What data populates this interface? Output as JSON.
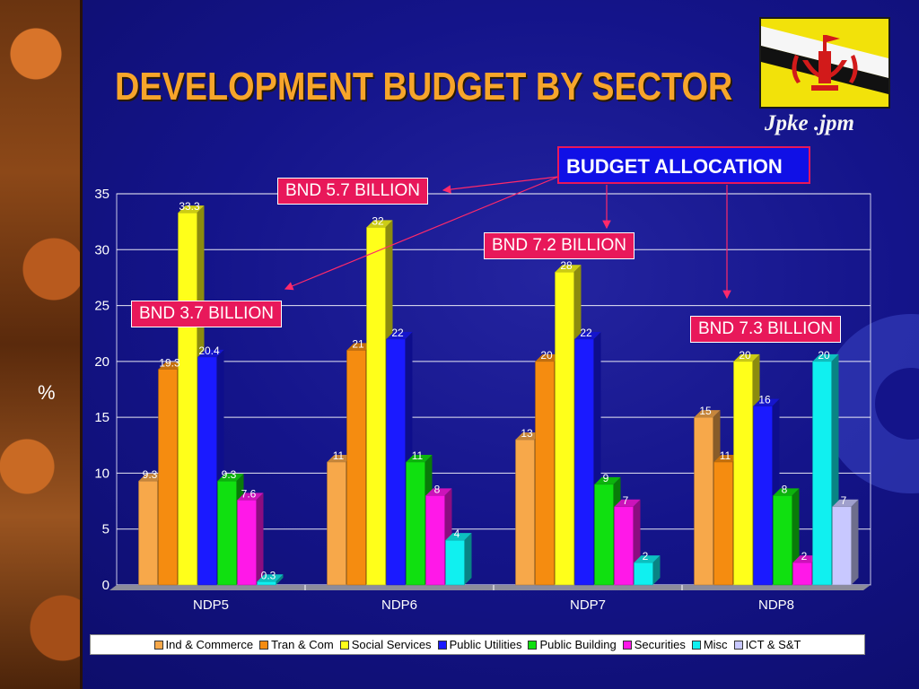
{
  "slide": {
    "title": "DEVELOPMENT BUDGET BY SECTOR",
    "author": "Jpke .jpm"
  },
  "annotations": {
    "budget_allocation": "BUDGET ALLOCATION",
    "ndp5": "BND 3.7 BILLION",
    "ndp6": "BND 5.7 BILLION",
    "ndp7": "BND 7.2 BILLION",
    "ndp8": "BND 7.3 BILLION"
  },
  "chart_data": {
    "type": "bar",
    "title": "",
    "xlabel": "",
    "ylabel": "%",
    "ylim": [
      0,
      35
    ],
    "yticks": [
      0,
      5,
      10,
      15,
      20,
      25,
      30,
      35
    ],
    "grid": true,
    "legend_position": "bottom",
    "categories": [
      "NDP5",
      "NDP6",
      "NDP7",
      "NDP8"
    ],
    "series": [
      {
        "name": "Ind & Commerce",
        "color": "#f7a84a",
        "values": [
          9.3,
          11,
          13,
          15
        ]
      },
      {
        "name": "Tran & Com",
        "color": "#f58c10",
        "values": [
          19.3,
          21,
          20,
          11
        ]
      },
      {
        "name": "Social Services",
        "color": "#ffff1a",
        "values": [
          33.3,
          32,
          28,
          20
        ]
      },
      {
        "name": "Public Utilities",
        "color": "#1a1aff",
        "values": [
          20.4,
          22,
          22,
          16
        ]
      },
      {
        "name": "Public Building",
        "color": "#10e010",
        "values": [
          9.3,
          11,
          9,
          8
        ]
      },
      {
        "name": "Securities",
        "color": "#ff18e8",
        "values": [
          7.6,
          8,
          7,
          2
        ]
      },
      {
        "name": "Misc",
        "color": "#10f0f0",
        "values": [
          0.3,
          4,
          2,
          20
        ]
      },
      {
        "name": "ICT & S&T",
        "color": "#c8c8ff",
        "values": [
          null,
          null,
          null,
          7
        ]
      }
    ],
    "data_labels": [
      [
        "9.3",
        "11",
        "13",
        "15"
      ],
      [
        "19.3",
        "21",
        "20",
        "11"
      ],
      [
        "33.3",
        "32",
        "28",
        "20"
      ],
      [
        "20.4",
        "22",
        "22",
        "16"
      ],
      [
        "9.3",
        "11",
        "9",
        "8"
      ],
      [
        "7.6",
        "8",
        "7",
        "2"
      ],
      [
        "0.3",
        "4",
        "2",
        "20"
      ],
      [
        "",
        "",
        "",
        "7"
      ]
    ]
  }
}
